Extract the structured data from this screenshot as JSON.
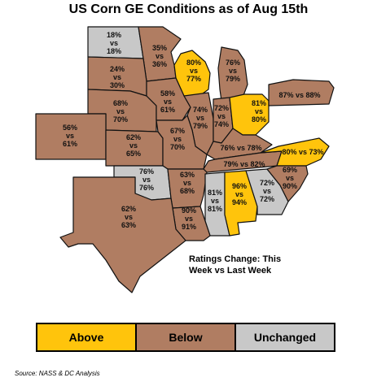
{
  "title": "US Corn GE Conditions as of Aug 15th",
  "note": "Ratings Change: This Week vs Last Week",
  "colors": {
    "above": "#FFC40C",
    "below": "#B07D62",
    "unchanged": "#C8C8C8"
  },
  "states": [
    {
      "id": "nd",
      "label1": "18%",
      "label2": "vs",
      "label3": "18%",
      "status": "unchanged"
    },
    {
      "id": "mn",
      "label1": "35%",
      "label2": "vs",
      "label3": "36%",
      "status": "below"
    },
    {
      "id": "sd",
      "label1": "24%",
      "label2": "vs",
      "label3": "30%",
      "status": "below"
    },
    {
      "id": "wi",
      "label1": "80%",
      "label2": "vs",
      "label3": "77%",
      "status": "above"
    },
    {
      "id": "mi",
      "label1": "76%",
      "label2": "vs",
      "label3": "79%",
      "status": "below"
    },
    {
      "id": "ne",
      "label1": "68%",
      "label2": "vs",
      "label3": "70%",
      "status": "below"
    },
    {
      "id": "ia",
      "label1": "58%",
      "label2": "vs",
      "label3": "61%",
      "status": "below"
    },
    {
      "id": "il",
      "label1": "74%",
      "label2": "vs",
      "label3": "79%",
      "status": "below"
    },
    {
      "id": "in",
      "label1": "72%",
      "label2": "vs",
      "label3": "74%",
      "status": "below"
    },
    {
      "id": "oh",
      "label1": "81%",
      "label2": "vs",
      "label3": "80%",
      "status": "above"
    },
    {
      "id": "pa",
      "label1": "87% vs 88%",
      "label2": "",
      "label3": "",
      "status": "below"
    },
    {
      "id": "co",
      "label1": "56%",
      "label2": "vs",
      "label3": "61%",
      "status": "below"
    },
    {
      "id": "ks",
      "label1": "62%",
      "label2": "vs",
      "label3": "65%",
      "status": "below"
    },
    {
      "id": "mo",
      "label1": "67%",
      "label2": "vs",
      "label3": "70%",
      "status": "below"
    },
    {
      "id": "ky",
      "label1": "76% vs 78%",
      "label2": "",
      "label3": "",
      "status": "below"
    },
    {
      "id": "nc",
      "label1": "80% vs 73%",
      "label2": "",
      "label3": "",
      "status": "above"
    },
    {
      "id": "tn",
      "label1": "79% vs 82%",
      "label2": "",
      "label3": "",
      "status": "below"
    },
    {
      "id": "ok",
      "label1": "76%",
      "label2": "vs",
      "label3": "76%",
      "status": "unchanged"
    },
    {
      "id": "ar",
      "label1": "63%",
      "label2": "vs",
      "label3": "68%",
      "status": "below"
    },
    {
      "id": "sc",
      "label1": "69%",
      "label2": "vs",
      "label3": "90%",
      "status": "below"
    },
    {
      "id": "ms",
      "label1": "81%",
      "label2": "vs",
      "label3": "81%",
      "status": "unchanged"
    },
    {
      "id": "al",
      "label1": "96%",
      "label2": "vs",
      "label3": "94%",
      "status": "above"
    },
    {
      "id": "ga",
      "label1": "72%",
      "label2": "vs",
      "label3": "72%",
      "status": "unchanged"
    },
    {
      "id": "tx",
      "label1": "62%",
      "label2": "vs",
      "label3": "63%",
      "status": "below"
    },
    {
      "id": "la",
      "label1": "90%",
      "label2": "vs",
      "label3": "91%",
      "status": "below"
    }
  ],
  "legend": {
    "above": "Above",
    "below": "Below",
    "unchanged": "Unchanged"
  },
  "source": "Source: NASS & DC Analysis"
}
